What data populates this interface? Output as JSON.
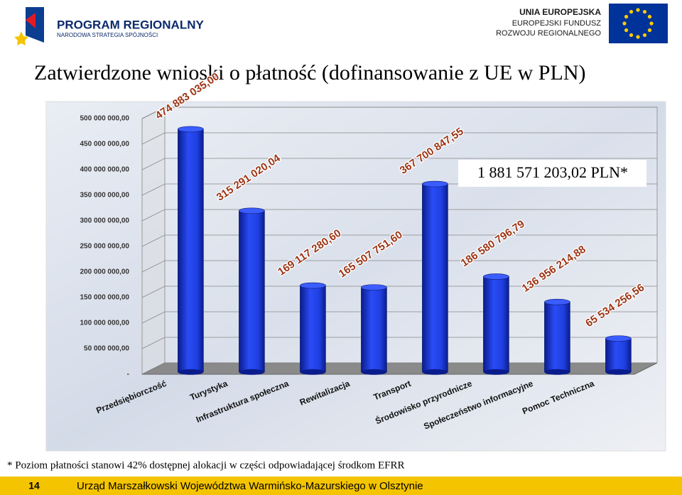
{
  "header": {
    "left_title": "PROGRAM REGIONALNY",
    "left_subtitle": "NARODOWA STRATEGIA SPÓJNOŚCI",
    "right_line1": "UNIA EUROPEJSKA",
    "right_line2": "EUROPEJSKI FUNDUSZ",
    "right_line3": "ROZWOJU REGIONALNEGO"
  },
  "chart_data": {
    "type": "bar3d",
    "title": "Zatwierdzone wnioski o płatność (dofinansowanie z UE w PLN)",
    "annotation": "1 881 571 203,02 PLN*",
    "categories": [
      "Przedsiębiorczość",
      "Turystyka",
      "Infrastruktura społeczna",
      "Rewitalizacja",
      "Transport",
      "Środowisko przyrodnicze",
      "Społeczeństwo informacyjne",
      "Pomoc Techniczna"
    ],
    "values": [
      474883035.0,
      315291020.04,
      169117280.6,
      165507751.6,
      367700847.55,
      186580796.79,
      136956214.88,
      65534256.56
    ],
    "value_labels": [
      "474 883 035,00",
      "315 291 020,04",
      "169 117 280,60",
      "165 507 751,60",
      "367 700 847,55",
      "186 580 796,79",
      "136 956 214,88",
      "65 534 256,56"
    ],
    "color": "#1f3fe0",
    "ylim": [
      0,
      500000000
    ],
    "yticks": [
      {
        "value": 0,
        "label": "-"
      },
      {
        "value": 50000000,
        "label": "50 000 000,00"
      },
      {
        "value": 100000000,
        "label": "100 000 000,00"
      },
      {
        "value": 150000000,
        "label": "150 000 000,00"
      },
      {
        "value": 200000000,
        "label": "200 000 000,00"
      },
      {
        "value": 250000000,
        "label": "250 000 000,00"
      },
      {
        "value": 300000000,
        "label": "300 000 000,00"
      },
      {
        "value": 350000000,
        "label": "350 000 000,00"
      },
      {
        "value": 400000000,
        "label": "400 000 000,00"
      },
      {
        "value": 450000000,
        "label": "450 000 000,00"
      },
      {
        "value": 500000000,
        "label": "500 000 000,00"
      }
    ],
    "grid": true
  },
  "footnote": "* Poziom płatności stanowi 42% dostępnej alokacji w części odpowiadającej środkom EFRR",
  "footer": {
    "page": "14",
    "text": "Urząd Marszałkowski Województwa Warmińsko-Mazurskiego w Olsztynie"
  }
}
